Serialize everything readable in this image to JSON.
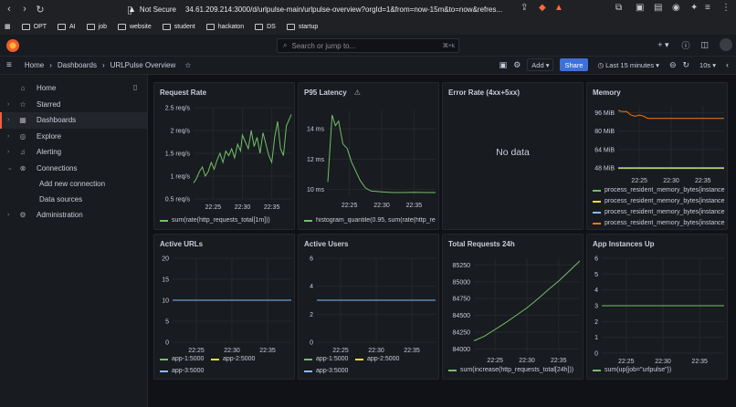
{
  "browser": {
    "security": "Not Secure",
    "url": "34.61.209.214:3000/d/urlpulse-main/urlpulse-overview?orgId=1&from=now-15m&to=now&refres...",
    "bookmarks": [
      "OPT",
      "AI",
      "job",
      "website",
      "student",
      "hackaton",
      "DS",
      "startup"
    ]
  },
  "grafana": {
    "search_placeholder": "Search or jump to...",
    "search_kbd": "⌘+k",
    "breadcrumb": [
      "Home",
      "Dashboards",
      "URLPulse Overview"
    ],
    "toolbar": {
      "add": "Add",
      "share": "Share",
      "time_range": "Last 15 minutes",
      "refresh": "10s"
    }
  },
  "sidebar": {
    "items": [
      {
        "label": "Home",
        "icon": "home-icon"
      },
      {
        "label": "Starred",
        "icon": "star-icon"
      },
      {
        "label": "Dashboards",
        "icon": "dashboards-icon"
      },
      {
        "label": "Explore",
        "icon": "compass-icon"
      },
      {
        "label": "Alerting",
        "icon": "bell-icon"
      },
      {
        "label": "Connections",
        "icon": "connections-icon"
      }
    ],
    "subitems": [
      "Add new connection",
      "Data sources"
    ],
    "admin": {
      "label": "Administration",
      "icon": "gear-icon"
    }
  },
  "colors": {
    "green": "#73bf69",
    "yellow": "#fade2a",
    "blue": "#8ab8ff",
    "orange": "#ff780a",
    "accent": "#3d71d9"
  },
  "panels": [
    {
      "id": "request-rate",
      "title": "Request Rate",
      "legend": [
        "sum(rate(http_requests_total[1m]))"
      ]
    },
    {
      "id": "p95-latency",
      "title": "P95 Latency",
      "legend": [
        "histogram_quantile(0.95, sum(rate(http_re"
      ]
    },
    {
      "id": "error-rate",
      "title": "Error Rate (4xx+5xx)",
      "no_data": "No data"
    },
    {
      "id": "memory",
      "title": "Memory",
      "legend": [
        "process_resident_memory_bytes{instance",
        "process_resident_memory_bytes{instance",
        "process_resident_memory_bytes{instance",
        "process_resident_memory_bytes{instance"
      ]
    },
    {
      "id": "active-urls",
      "title": "Active URLs",
      "legend": [
        "app-1:5000",
        "app-2:5000",
        "app-3:5000"
      ]
    },
    {
      "id": "active-users",
      "title": "Active Users",
      "legend": [
        "app-1:5000",
        "app-2:5000",
        "app-3:5000"
      ]
    },
    {
      "id": "total-requests",
      "title": "Total Requests 24h",
      "legend": [
        "sum(increase(http_requests_total[24h]))"
      ]
    },
    {
      "id": "app-instances",
      "title": "App Instances Up",
      "legend": [
        "sum(up{job=\"urlpulse\"})"
      ]
    }
  ],
  "chart_data": [
    {
      "type": "line",
      "title": "Request Rate",
      "x_ticks": [
        "22:25",
        "22:30",
        "22:35"
      ],
      "y_ticks": [
        "0.5 req/s",
        "1 req/s",
        "1.5 req/s",
        "2 req/s",
        "2.5 req/s"
      ],
      "ylim": [
        0.5,
        2.5
      ],
      "series": [
        {
          "name": "sum(rate(http_requests_total[1m]))",
          "color": "#73bf69",
          "t": [
            0,
            0.03,
            0.06,
            0.09,
            0.12,
            0.15,
            0.18,
            0.21,
            0.24,
            0.27,
            0.3,
            0.33,
            0.36,
            0.39,
            0.42,
            0.45,
            0.48,
            0.5,
            0.53,
            0.56,
            0.59,
            0.62,
            0.65,
            0.68,
            0.71,
            0.74,
            0.77,
            0.8,
            0.83,
            0.86,
            0.89,
            0.92,
            0.95,
            1.0
          ],
          "values": [
            0.85,
            0.95,
            1.1,
            1.2,
            1.0,
            1.1,
            1.3,
            1.15,
            1.35,
            1.5,
            1.3,
            1.55,
            1.45,
            1.6,
            1.4,
            1.7,
            1.55,
            1.9,
            1.75,
            1.6,
            2.0,
            1.65,
            1.85,
            1.5,
            1.95,
            1.7,
            1.45,
            1.3,
            1.85,
            2.2,
            1.6,
            1.45,
            2.1,
            2.35
          ]
        }
      ]
    },
    {
      "type": "line",
      "title": "P95 Latency",
      "x_ticks": [
        "22:25",
        "22:30",
        "22:35"
      ],
      "y_ticks": [
        "10 ms",
        "12 ms",
        "14 ms"
      ],
      "ylim": [
        9.5,
        15.2
      ],
      "series": [
        {
          "name": "histogram_quantile(0.95, sum(rate(http_re",
          "color": "#73bf69",
          "t": [
            0,
            0.04,
            0.07,
            0.1,
            0.14,
            0.18,
            0.22,
            0.26,
            0.3,
            0.35,
            0.4,
            0.5,
            0.6,
            0.7,
            0.8,
            0.9,
            1.0
          ],
          "values": [
            10.5,
            14.9,
            14.2,
            14.5,
            13.0,
            12.7,
            11.8,
            11.2,
            10.6,
            10.1,
            9.9,
            9.85,
            9.8,
            9.8,
            9.82,
            9.8,
            9.8
          ]
        }
      ]
    },
    {
      "type": "line",
      "title": "Memory",
      "x_ticks": [
        "22:25",
        "22:30",
        "22:35"
      ],
      "y_ticks": [
        "48 MiB",
        "64 MiB",
        "80 MiB",
        "96 MiB"
      ],
      "ylim": [
        44,
        102
      ],
      "series": [
        {
          "name": "process_resident_memory_bytes{instance",
          "color": "#73bf69",
          "t": [
            0,
            1
          ],
          "values": [
            47.5,
            47.5
          ]
        },
        {
          "name": "process_resident_memory_bytes{instance",
          "color": "#fade2a",
          "t": [
            0,
            1
          ],
          "values": [
            47.8,
            47.8
          ]
        },
        {
          "name": "process_resident_memory_bytes{instance",
          "color": "#8ab8ff",
          "t": [
            0,
            1
          ],
          "values": [
            48.1,
            48.1
          ]
        },
        {
          "name": "process_resident_memory_bytes{instance",
          "color": "#ff780a",
          "t": [
            0,
            0.04,
            0.08,
            0.12,
            0.16,
            0.2,
            0.24,
            0.28,
            0.6,
            1.0
          ],
          "values": [
            98,
            97,
            97,
            94,
            93,
            94,
            93,
            91,
            91,
            91
          ]
        }
      ]
    },
    {
      "type": "line",
      "title": "Active URLs",
      "x_ticks": [
        "22:25",
        "22:30",
        "22:35"
      ],
      "y_ticks": [
        "0",
        "5",
        "10",
        "15",
        "20"
      ],
      "ylim": [
        0,
        20
      ],
      "series": [
        {
          "name": "app-1:5000",
          "color": "#73bf69",
          "t": [
            0,
            1
          ],
          "values": [
            10,
            10
          ]
        },
        {
          "name": "app-2:5000",
          "color": "#fade2a",
          "t": [
            0,
            1
          ],
          "values": [
            10,
            10
          ]
        },
        {
          "name": "app-3:5000",
          "color": "#8ab8ff",
          "t": [
            0,
            1
          ],
          "values": [
            10,
            10
          ]
        }
      ]
    },
    {
      "type": "line",
      "title": "Active Users",
      "x_ticks": [
        "22:25",
        "22:30",
        "22:35"
      ],
      "y_ticks": [
        "0",
        "2",
        "4",
        "6"
      ],
      "ylim": [
        0,
        6
      ],
      "series": [
        {
          "name": "app-1:5000",
          "color": "#73bf69",
          "t": [
            0,
            1
          ],
          "values": [
            3,
            3
          ]
        },
        {
          "name": "app-2:5000",
          "color": "#fade2a",
          "t": [
            0,
            1
          ],
          "values": [
            3,
            3
          ]
        },
        {
          "name": "app-3:5000",
          "color": "#8ab8ff",
          "t": [
            0,
            1
          ],
          "values": [
            3,
            3
          ]
        }
      ]
    },
    {
      "type": "line",
      "title": "Total Requests 24h",
      "x_ticks": [
        "22:25",
        "22:30",
        "22:35"
      ],
      "y_ticks": [
        "84000",
        "84250",
        "84500",
        "84750",
        "85000",
        "85250"
      ],
      "ylim": [
        83950,
        85350
      ],
      "series": [
        {
          "name": "sum(increase(http_requests_total[24h]))",
          "color": "#73bf69",
          "t": [
            0,
            0.1,
            0.2,
            0.3,
            0.4,
            0.5,
            0.6,
            0.7,
            0.8,
            0.9,
            1.0
          ],
          "values": [
            84120,
            84190,
            84290,
            84390,
            84500,
            84610,
            84740,
            84880,
            85010,
            85160,
            85310
          ]
        }
      ]
    },
    {
      "type": "line",
      "title": "App Instances Up",
      "x_ticks": [
        "22:25",
        "22:30",
        "22:35"
      ],
      "y_ticks": [
        "0",
        "1",
        "2",
        "3",
        "4",
        "5",
        "6"
      ],
      "ylim": [
        0,
        6
      ],
      "series": [
        {
          "name": "sum(up{job=\"urlpulse\"})",
          "color": "#73bf69",
          "t": [
            0,
            1
          ],
          "values": [
            3,
            3
          ]
        }
      ]
    }
  ]
}
